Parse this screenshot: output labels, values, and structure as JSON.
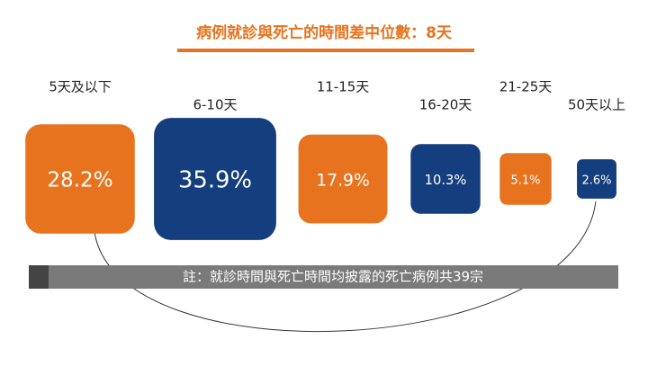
{
  "chart_data": {
    "type": "square",
    "title": "病例就診與死亡的時間差中位數：8天",
    "categories": [
      "5天及以下",
      "6-10天",
      "11-15天",
      "16-20天",
      "21-25天",
      "50天以上"
    ],
    "values": [
      28.2,
      35.9,
      17.9,
      10.3,
      5.1,
      2.6
    ],
    "value_labels": [
      "28.2%",
      "35.9%",
      "17.9%",
      "10.3%",
      "5.1%",
      "2.6%"
    ],
    "colors": [
      "#e8731e",
      "#153e7e",
      "#e8731e",
      "#153e7e",
      "#e8731e",
      "#153e7e"
    ],
    "note": "註：就診時間與死亡時間均披露的死亡病例共39宗"
  }
}
